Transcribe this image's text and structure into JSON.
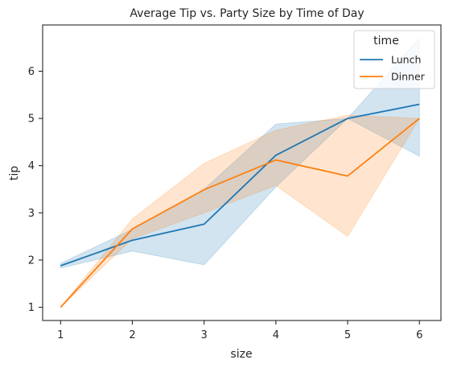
{
  "chart_data": {
    "type": "line",
    "title": "Average Tip vs. Party Size by Time of Day",
    "xlabel": "size",
    "ylabel": "tip",
    "xlim": [
      0.75,
      6.3
    ],
    "ylim": [
      0.72,
      6.98
    ],
    "xticks": [
      1,
      2,
      3,
      4,
      5,
      6
    ],
    "yticks": [
      1,
      2,
      3,
      4,
      5,
      6
    ],
    "grid": false,
    "legend": {
      "title": "time",
      "position": "top-right"
    },
    "series": [
      {
        "name": "Lunch",
        "color": "#1f77b4",
        "x": [
          1,
          2,
          3,
          4,
          5,
          6
        ],
        "values": [
          1.88,
          2.42,
          2.76,
          4.22,
          5.0,
          5.3
        ],
        "ci_low": [
          1.83,
          2.19,
          1.9,
          3.55,
          5.0,
          4.2
        ],
        "ci_high": [
          1.93,
          2.65,
          3.5,
          4.88,
          5.0,
          6.7
        ]
      },
      {
        "name": "Dinner",
        "color": "#ff7f0e",
        "x": [
          1,
          2,
          3,
          4,
          5,
          6
        ],
        "values": [
          1.0,
          2.66,
          3.49,
          4.12,
          3.78,
          5.0
        ],
        "ci_low": [
          1.0,
          2.45,
          3.0,
          3.58,
          2.5,
          5.0
        ],
        "ci_high": [
          1.0,
          2.87,
          4.05,
          4.75,
          5.07,
          5.0
        ]
      }
    ]
  }
}
